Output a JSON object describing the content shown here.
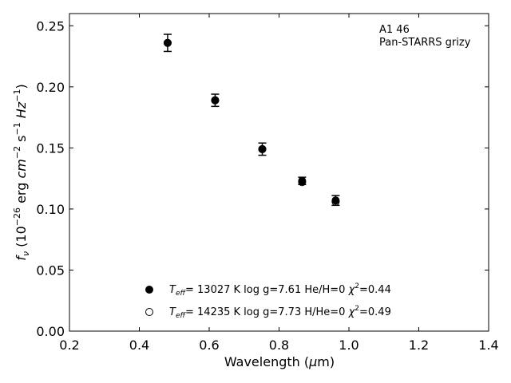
{
  "chart_data": {
    "type": "scatter",
    "xlabel_prefix": "Wavelength (",
    "xlabel_mu": "μ",
    "xlabel_suffix": "m)",
    "ylabel_f": "f",
    "ylabel_nu": "ν",
    "ylabel_open": " (10",
    "ylabel_exp1": "−26",
    "ylabel_erg": " erg ",
    "ylabel_cm": "cm",
    "ylabel_exp2": "−2",
    "ylabel_s": " s",
    "ylabel_exp3": "−1",
    "ylabel_hz": " Hz",
    "ylabel_exp4": "−1",
    "ylabel_close": ")",
    "xlim": [
      0.2,
      1.4
    ],
    "ylim": [
      0.0,
      0.26
    ],
    "xticks": [
      0.2,
      0.4,
      0.6,
      0.8,
      1.0,
      1.2,
      1.4
    ],
    "xtick_labels": [
      "0.2",
      "0.4",
      "0.6",
      "0.8",
      "1.0",
      "1.2",
      "1.4"
    ],
    "yticks": [
      0.0,
      0.05,
      0.1,
      0.15,
      0.2,
      0.25
    ],
    "ytick_labels": [
      "0.00",
      "0.05",
      "0.10",
      "0.15",
      "0.20",
      "0.25"
    ],
    "grid": false,
    "annotation": {
      "line1": "A1 46",
      "line2": "Pan-STARRS grizy"
    },
    "series": [
      {
        "marker": "open-circle",
        "points": [
          {
            "x": 0.481,
            "y": 0.236
          },
          {
            "x": 0.617,
            "y": 0.189
          },
          {
            "x": 0.752,
            "y": 0.149
          },
          {
            "x": 0.866,
            "y": 0.122
          },
          {
            "x": 0.962,
            "y": 0.106
          }
        ]
      },
      {
        "marker": "filled-circle",
        "points": [
          {
            "x": 0.481,
            "y": 0.236,
            "yerr": 0.007
          },
          {
            "x": 0.617,
            "y": 0.189,
            "yerr": 0.005
          },
          {
            "x": 0.752,
            "y": 0.149,
            "yerr": 0.005
          },
          {
            "x": 0.866,
            "y": 0.123,
            "yerr": 0.003
          },
          {
            "x": 0.962,
            "y": 0.107,
            "yerr": 0.004
          }
        ]
      }
    ],
    "legend": {
      "placement": "lower-center",
      "entries": [
        {
          "marker": "filled-circle",
          "t": "T",
          "eff": "eff",
          "rest": "= 13027 K  log g=7.61  He/H=0  ",
          "chi": "χ",
          "chi_exp": "2",
          "chi_val": "=0.44"
        },
        {
          "marker": "open-circle",
          "t": "T",
          "eff": "eff",
          "rest": "= 14235 K  log g=7.73  H/He=0  ",
          "chi": "χ",
          "chi_exp": "2",
          "chi_val": "=0.49"
        }
      ]
    }
  }
}
